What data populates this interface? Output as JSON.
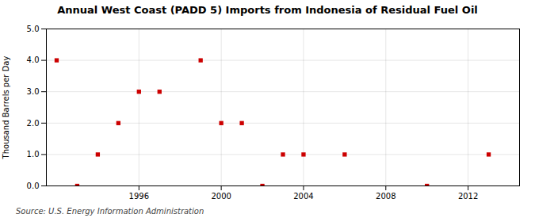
{
  "chart_data": {
    "type": "scatter",
    "title": "Annual West Coast (PADD 5) Imports from Indonesia of Residual Fuel Oil",
    "ylabel": "Thousand Barrels per Day",
    "annotations": [
      "Source: U.S. Energy Information Administration"
    ],
    "x": [
      1992,
      1993,
      1994,
      1995,
      1996,
      1997,
      1999,
      2000,
      2001,
      2002,
      2003,
      2004,
      2006,
      2010,
      2013
    ],
    "values": [
      4,
      0,
      1,
      2,
      3,
      3,
      4,
      2,
      2,
      0,
      1,
      1,
      1,
      0,
      1
    ],
    "color": "#cc0000",
    "marker": "square",
    "xlim": [
      1991.5,
      2014.5
    ],
    "ylim": [
      0.0,
      5.0
    ],
    "xticks": [
      1996,
      2000,
      2004,
      2008,
      2012
    ],
    "yticks": [
      {
        "value": 0,
        "label": "0.0"
      },
      {
        "value": 1,
        "label": "1.0"
      },
      {
        "value": 2,
        "label": "2.0"
      },
      {
        "value": 3,
        "label": "3.0"
      },
      {
        "value": 4,
        "label": "4.0"
      },
      {
        "value": 5,
        "label": "5.0"
      }
    ],
    "grid": true
  }
}
